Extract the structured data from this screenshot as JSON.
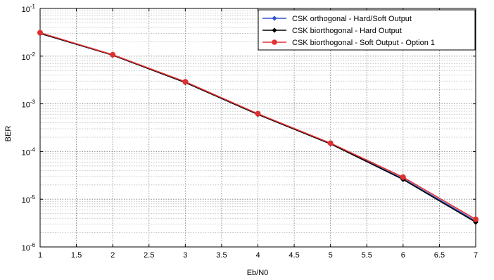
{
  "chart_data": {
    "type": "line",
    "title": "",
    "xlabel": "Eb/N0",
    "ylabel": "BER",
    "xlim": [
      1,
      7
    ],
    "ylim": [
      1e-06,
      0.1
    ],
    "yscale": "log",
    "grid": true,
    "legend_position": "top-right",
    "x_ticks": [
      "1",
      "1.5",
      "2",
      "2.5",
      "3",
      "3.5",
      "4",
      "4.5",
      "5",
      "5.5",
      "6",
      "6.5",
      "7"
    ],
    "y_ticks": [
      {
        "base": "10",
        "exp": "-1"
      },
      {
        "base": "10",
        "exp": "-2"
      },
      {
        "base": "10",
        "exp": "-3"
      },
      {
        "base": "10",
        "exp": "-4"
      },
      {
        "base": "10",
        "exp": "-5"
      },
      {
        "base": "10",
        "exp": "-6"
      }
    ],
    "x": [
      1,
      2,
      3,
      4,
      5,
      6,
      7
    ],
    "series": [
      {
        "name": "CSK orthogonal - Hard/Soft Output",
        "color": "#3355cc",
        "marker": "diamond",
        "values": [
          0.03,
          0.0105,
          0.0028,
          0.0006,
          0.000145,
          2.7e-05,
          3.5e-06
        ]
      },
      {
        "name": "CSK biorthogonal - Hard Output",
        "color": "#000000",
        "marker": "diamond",
        "values": [
          0.03,
          0.0105,
          0.0028,
          0.0006,
          0.000145,
          2.6e-05,
          3.3e-06
        ]
      },
      {
        "name": "CSK biorthogonal - Soft Output - Option 1",
        "color": "#e03030",
        "marker": "circle",
        "values": [
          0.031,
          0.0107,
          0.0029,
          0.00062,
          0.00015,
          2.9e-05,
          3.8e-06
        ]
      }
    ]
  }
}
